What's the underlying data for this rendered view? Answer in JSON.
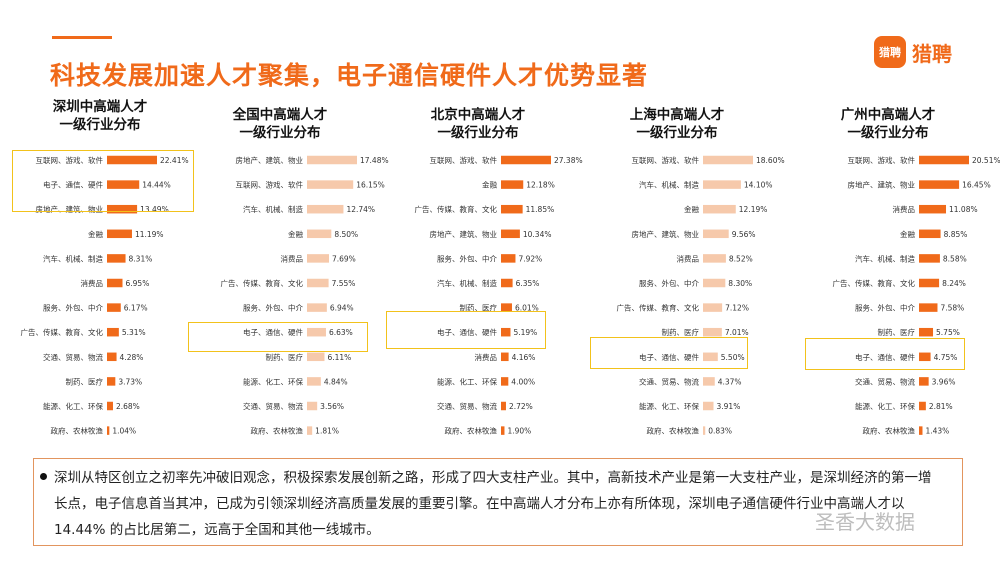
{
  "header": {
    "title": "科技发展加速人才聚集，电子通信硬件人才优势显著"
  },
  "brand": {
    "logo_mark": "猎聘",
    "logo_text": "猎聘"
  },
  "colors": {
    "accent": "#f06a1a",
    "bar_dark": "#f06a1a",
    "bar_light": "#f6c9ab",
    "highlight": "#f2c21b"
  },
  "chart_data": [
    {
      "type": "bar",
      "title": "深圳中高端人才\n一级行业分布",
      "categories": [
        "互联网、游戏、软件",
        "电子、通信、硬件",
        "房地产、建筑、物业",
        "金融",
        "汽车、机械、制造",
        "消费品",
        "服务、外包、中介",
        "广告、传媒、教育、文化",
        "交通、贸易、物流",
        "制药、医疗",
        "能源、化工、环保",
        "政府、农林牧渔"
      ],
      "labels": [
        "22.41%",
        "14.44%",
        "13.49%",
        "11.19%",
        "8.31%",
        "6.95%",
        "6.17%",
        "5.31%",
        "4.28%",
        "3.73%",
        "2.68%",
        "1.04%"
      ],
      "values": [
        22.41,
        14.44,
        13.49,
        11.19,
        8.31,
        6.95,
        6.17,
        5.31,
        4.28,
        3.73,
        2.68,
        1.04
      ]
    },
    {
      "type": "bar",
      "title": "全国中高端人才\n一级行业分布",
      "categories": [
        "房地产、建筑、物业",
        "互联网、游戏、软件",
        "汽车、机械、制造",
        "金融",
        "消费品",
        "广告、传媒、教育、文化",
        "服务、外包、中介",
        "电子、通信、硬件",
        "制药、医疗",
        "能源、化工、环保",
        "交通、贸易、物流",
        "政府、农林牧渔"
      ],
      "labels": [
        "17.48%",
        "16.15%",
        "12.74%",
        "8.50%",
        "7.69%",
        "7.55%",
        "6.94%",
        "6.63%",
        "6.11%",
        "4.84%",
        "3.56%",
        "1.81%"
      ],
      "values": [
        17.48,
        16.15,
        12.74,
        8.5,
        7.69,
        7.55,
        6.94,
        6.63,
        6.11,
        4.84,
        3.56,
        1.81
      ]
    },
    {
      "type": "bar",
      "title": "北京中高端人才\n一级行业分布",
      "categories": [
        "互联网、游戏、软件",
        "金融",
        "广告、传媒、教育、文化",
        "房地产、建筑、物业",
        "服务、外包、中介",
        "汽车、机械、制造",
        "制药、医疗",
        "电子、通信、硬件",
        "消费品",
        "能源、化工、环保",
        "交通、贸易、物流",
        "政府、农林牧渔"
      ],
      "labels": [
        "27.38%",
        "12.18%",
        "11.85%",
        "10.34%",
        "7.92%",
        "6.35%",
        "6.01%",
        "5.19%",
        "4.16%",
        "4.00%",
        "2.72%",
        "1.90%"
      ],
      "values": [
        27.38,
        12.18,
        11.85,
        10.34,
        7.92,
        6.35,
        6.01,
        5.19,
        4.16,
        4.0,
        2.72,
        1.9
      ]
    },
    {
      "type": "bar",
      "title": "上海中高端人才\n一级行业分布",
      "categories": [
        "互联网、游戏、软件",
        "汽车、机械、制造",
        "金融",
        "房地产、建筑、物业",
        "消费品",
        "服务、外包、中介",
        "广告、传媒、教育、文化",
        "制药、医疗",
        "电子、通信、硬件",
        "交通、贸易、物流",
        "能源、化工、环保",
        "政府、农林牧渔"
      ],
      "labels": [
        "18.60%",
        "14.10%",
        "12.19%",
        "9.56%",
        "8.52%",
        "8.30%",
        "7.12%",
        "7.01%",
        "5.50%",
        "4.37%",
        "3.91%",
        "0.83%"
      ],
      "values": [
        18.6,
        14.1,
        12.19,
        9.56,
        8.52,
        8.3,
        7.12,
        7.01,
        5.5,
        4.37,
        3.91,
        0.83
      ]
    },
    {
      "type": "bar",
      "title": "广州中高端人才\n一级行业分布",
      "categories": [
        "互联网、游戏、软件",
        "房地产、建筑、物业",
        "消费品",
        "金融",
        "汽车、机械、制造",
        "广告、传媒、教育、文化",
        "服务、外包、中介",
        "制药、医疗",
        "电子、通信、硬件",
        "交通、贸易、物流",
        "能源、化工、环保",
        "政府、农林牧渔"
      ],
      "labels": [
        "20.51%",
        "16.45%",
        "11.08%",
        "8.85%",
        "8.58%",
        "8.24%",
        "7.58%",
        "5.75%",
        "4.75%",
        "3.96%",
        "2.81%",
        "1.43%"
      ],
      "values": [
        20.51,
        16.45,
        11.08,
        8.85,
        8.58,
        8.24,
        7.58,
        5.75,
        4.75,
        3.96,
        2.81,
        1.43
      ]
    }
  ],
  "note": {
    "text": "深圳从特区创立之初率先冲破旧观念，积极探索发展创新之路，形成了四大支柱产业。其中，高新技术产业是第一大支柱产业，是深圳经济的第一增长点，电子信息首当其冲，已成为引领深圳经济高质量发展的重要引擎。在中高端人才分布上亦有所体现，深圳电子通信硬件行业中高端人才以 14.44% 的占比居第二，远高于全国和其他一线城市。"
  },
  "watermark": "圣香大数据"
}
